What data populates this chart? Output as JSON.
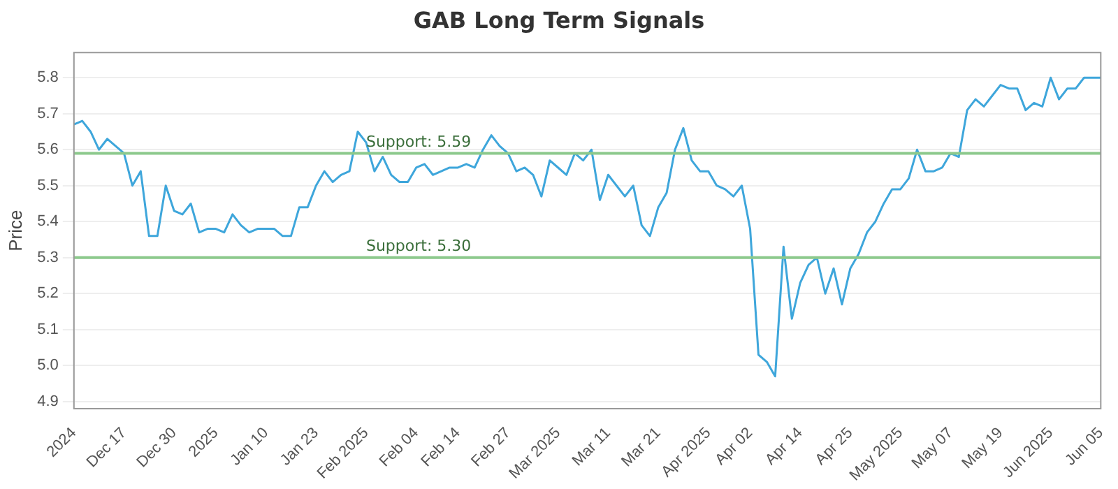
{
  "chart_data": {
    "type": "line",
    "title": "GAB Long Term Signals",
    "ylabel": "Price",
    "categories": [
      "2024",
      null,
      null,
      null,
      null,
      null,
      "Dec 17",
      null,
      null,
      null,
      null,
      null,
      "Dec 30",
      null,
      null,
      null,
      null,
      "2025",
      null,
      null,
      null,
      null,
      null,
      "Jan 10",
      null,
      null,
      null,
      null,
      null,
      "Jan 23",
      null,
      null,
      null,
      null,
      null,
      "Feb 2025",
      null,
      null,
      null,
      null,
      null,
      "Feb 04",
      null,
      null,
      null,
      null,
      "Feb 14",
      null,
      null,
      null,
      null,
      null,
      "Feb 27",
      null,
      null,
      null,
      null,
      null,
      "Mar 2025",
      null,
      null,
      null,
      null,
      null,
      "Mar 11",
      null,
      null,
      null,
      null,
      null,
      "Mar 21",
      null,
      null,
      null,
      null,
      null,
      "Apr 2025",
      null,
      null,
      null,
      null,
      "Apr 02",
      null,
      null,
      null,
      null,
      null,
      "Apr 14",
      null,
      null,
      null,
      null,
      null,
      "Apr 25",
      null,
      null,
      null,
      null,
      null,
      "May 2025",
      null,
      null,
      null,
      null,
      null,
      "May 07",
      null,
      null,
      null,
      null,
      null,
      "May 19",
      null,
      null,
      null,
      null,
      null,
      "Jun 2025",
      null,
      null,
      null,
      null,
      null,
      "Jun 05"
    ],
    "series": [
      {
        "color": "#3ea6db",
        "values": [
          5.67,
          5.68,
          5.65,
          5.6,
          5.63,
          5.61,
          5.59,
          5.5,
          5.54,
          5.36,
          5.36,
          5.5,
          5.43,
          5.42,
          5.45,
          5.37,
          5.38,
          5.38,
          5.37,
          5.42,
          5.39,
          5.37,
          5.38,
          5.38,
          5.38,
          5.36,
          5.36,
          5.44,
          5.44,
          5.5,
          5.54,
          5.51,
          5.53,
          5.54,
          5.65,
          5.62,
          5.54,
          5.58,
          5.53,
          5.51,
          5.51,
          5.55,
          5.56,
          5.53,
          5.54,
          5.55,
          5.55,
          5.56,
          5.55,
          5.6,
          5.64,
          5.61,
          5.59,
          5.54,
          5.55,
          5.53,
          5.47,
          5.57,
          5.55,
          5.53,
          5.59,
          5.57,
          5.6,
          5.46,
          5.53,
          5.5,
          5.47,
          5.5,
          5.39,
          5.36,
          5.44,
          5.48,
          5.6,
          5.66,
          5.57,
          5.54,
          5.54,
          5.5,
          5.49,
          5.47,
          5.5,
          5.38,
          5.03,
          5.01,
          4.97,
          5.33,
          5.13,
          5.23,
          5.28,
          5.3,
          5.2,
          5.27,
          5.17,
          5.27,
          5.31,
          5.37,
          5.4,
          5.45,
          5.49,
          5.49,
          5.52,
          5.6,
          5.54,
          5.54,
          5.55,
          5.59,
          5.58,
          5.71,
          5.74,
          5.72,
          5.75,
          5.78,
          5.77,
          5.77,
          5.71,
          5.73,
          5.72,
          5.8,
          5.74,
          5.77,
          5.77,
          5.8,
          5.8,
          5.8
        ]
      }
    ],
    "ylim": [
      4.88,
      5.87
    ],
    "yticks": [
      4.9,
      {
        "value": 5,
        "label": "5.0"
      },
      5.1,
      5.2,
      5.3,
      5.4,
      5.5,
      5.6,
      5.7,
      5.8
    ],
    "grid": "y",
    "marker": "none",
    "line_style": "solid",
    "ref_lines": [
      {
        "axis": "y",
        "value": 5.59,
        "label": "Support: 5.59",
        "color": "#8cc98c"
      },
      {
        "axis": "y",
        "value": 5.3,
        "label": "Support: 5.30",
        "color": "#8cc98c"
      }
    ]
  }
}
